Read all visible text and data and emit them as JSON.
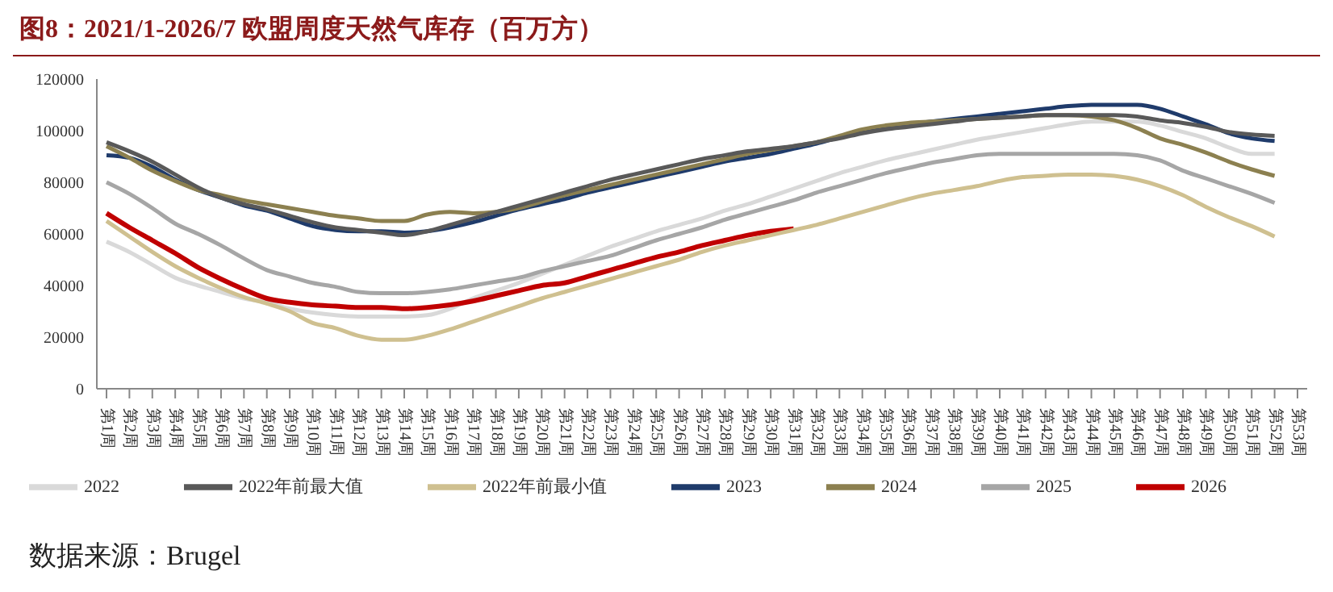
{
  "chart_data": {
    "type": "line",
    "title": "图8：2021/1-2026/7 欧盟周度天然气库存（百万方）",
    "annotations": [
      "数据来源：Brugel"
    ],
    "categories": [
      "第1周",
      "第2周",
      "第3周",
      "第4周",
      "第5周",
      "第6周",
      "第7周",
      "第8周",
      "第9周",
      "第10周",
      "第11周",
      "第12周",
      "第13周",
      "第14周",
      "第15周",
      "第16周",
      "第17周",
      "第18周",
      "第19周",
      "第20周",
      "第21周",
      "第22周",
      "第23周",
      "第24周",
      "第25周",
      "第26周",
      "第27周",
      "第28周",
      "第29周",
      "第30周",
      "第31周",
      "第32周",
      "第33周",
      "第34周",
      "第35周",
      "第36周",
      "第37周",
      "第38周",
      "第39周",
      "第40周",
      "第41周",
      "第42周",
      "第43周",
      "第44周",
      "第45周",
      "第46周",
      "第47周",
      "第48周",
      "第49周",
      "第50周",
      "第51周",
      "第52周",
      "第53周"
    ],
    "ylim": [
      0,
      120000
    ],
    "yticks": [
      0,
      20000,
      40000,
      60000,
      80000,
      100000,
      120000
    ],
    "grid": false,
    "legend": "bottom",
    "marker": "none",
    "line_style": "solid",
    "series": [
      {
        "name": "2022",
        "color": "#d9d9d9",
        "values": [
          57000,
          53000,
          48000,
          43000,
          40000,
          37500,
          35000,
          33500,
          31000,
          29500,
          28500,
          28000,
          28000,
          28000,
          28500,
          31000,
          35000,
          38000,
          41000,
          44500,
          48000,
          51500,
          55000,
          58000,
          61000,
          63500,
          66000,
          69000,
          71500,
          74500,
          77500,
          80500,
          83500,
          86000,
          88500,
          90500,
          92500,
          94500,
          96500,
          98000,
          99500,
          101000,
          102500,
          103500,
          103500,
          103500,
          102000,
          99500,
          97000,
          93500,
          91000,
          91000,
          null
        ]
      },
      {
        "name": "2023",
        "color": "#1f3b6b",
        "values": [
          90500,
          89500,
          86000,
          81000,
          77000,
          74000,
          71000,
          69000,
          66000,
          63000,
          61500,
          61000,
          61000,
          60500,
          61000,
          62500,
          64500,
          67000,
          69500,
          71500,
          73500,
          76000,
          78000,
          80000,
          82000,
          84000,
          86000,
          88000,
          89500,
          91000,
          93000,
          95000,
          97500,
          100000,
          101500,
          102500,
          103500,
          104500,
          105500,
          106500,
          107500,
          108500,
          109500,
          110000,
          110000,
          110000,
          108500,
          105500,
          102500,
          99000,
          97000,
          96000,
          null
        ]
      },
      {
        "name": "2024",
        "color": "#8c8050",
        "values": [
          94000,
          89500,
          84500,
          80500,
          77000,
          75000,
          73000,
          71500,
          70000,
          68500,
          67000,
          66000,
          65000,
          65000,
          67500,
          68500,
          68000,
          68500,
          70000,
          72500,
          75000,
          77000,
          79000,
          81000,
          83000,
          85000,
          87000,
          89000,
          91000,
          92500,
          94000,
          95500,
          98000,
          100500,
          102000,
          103000,
          103500,
          104000,
          104500,
          105000,
          105500,
          106000,
          106000,
          105500,
          104000,
          101000,
          97000,
          94500,
          91500,
          88000,
          85000,
          82500,
          null
        ]
      },
      {
        "name": "2025",
        "color": "#a6a6a6",
        "values": [
          80000,
          75500,
          70000,
          64000,
          60000,
          55500,
          50500,
          46000,
          43500,
          41000,
          39500,
          37500,
          37000,
          37000,
          37500,
          38500,
          40000,
          41500,
          43000,
          45500,
          47500,
          49500,
          51500,
          54500,
          57500,
          60000,
          62500,
          65500,
          68000,
          70500,
          73000,
          76000,
          78500,
          81000,
          83500,
          85500,
          87500,
          89000,
          90500,
          91000,
          91000,
          91000,
          91000,
          91000,
          91000,
          90500,
          88500,
          84500,
          81500,
          78500,
          75500,
          72000,
          null
        ]
      },
      {
        "name": "2026",
        "color": "#c00000",
        "values": [
          68000,
          62500,
          57500,
          52500,
          47000,
          42500,
          38500,
          35000,
          33500,
          32500,
          32000,
          31500,
          31500,
          31000,
          31500,
          32500,
          34000,
          36000,
          38000,
          40000,
          41000,
          43500,
          46000,
          48500,
          51000,
          53000,
          55500,
          57500,
          59500,
          61000,
          62000,
          null,
          null,
          null,
          null,
          null,
          null,
          null,
          null,
          null,
          null,
          null,
          null,
          null,
          null,
          null,
          null,
          null,
          null,
          null,
          null,
          null,
          null
        ]
      },
      {
        "name": "2022年前最小值",
        "color": "#cfc090",
        "values": [
          65000,
          59000,
          53000,
          47500,
          43000,
          39000,
          35500,
          33000,
          30000,
          25500,
          23500,
          20500,
          19000,
          19000,
          20500,
          23000,
          26000,
          29000,
          32000,
          35000,
          37500,
          40000,
          42500,
          45000,
          47500,
          50000,
          53000,
          55500,
          57500,
          59500,
          61500,
          63500,
          66000,
          68500,
          71000,
          73500,
          75500,
          77000,
          78500,
          80500,
          82000,
          82500,
          83000,
          83000,
          82500,
          81000,
          78500,
          75000,
          70500,
          66500,
          63000,
          59000,
          null
        ]
      },
      {
        "name": "2022年前最大值",
        "color": "#595959",
        "values": [
          95500,
          92000,
          88000,
          83000,
          78000,
          74000,
          71500,
          69500,
          67000,
          64500,
          62500,
          61500,
          60500,
          59500,
          61000,
          63500,
          66000,
          68500,
          71000,
          73500,
          76000,
          78500,
          81000,
          83000,
          85000,
          87000,
          89000,
          90500,
          92000,
          93000,
          94000,
          95500,
          97000,
          99000,
          100500,
          101500,
          102500,
          103500,
          104500,
          105000,
          105500,
          106000,
          106000,
          106000,
          106000,
          105500,
          104000,
          103000,
          101500,
          99500,
          98500,
          98000,
          null
        ]
      }
    ]
  }
}
